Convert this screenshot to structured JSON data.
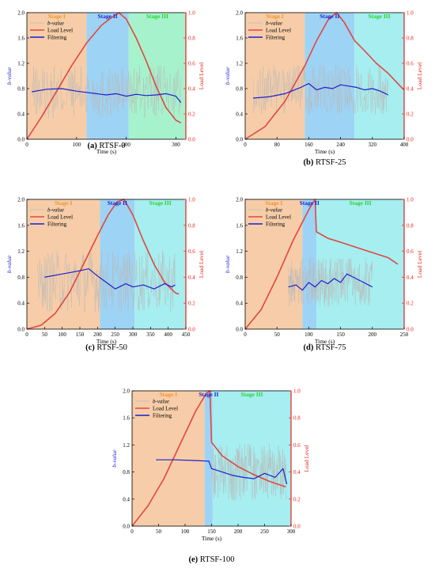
{
  "figure": {
    "panels": [
      {
        "id": "a",
        "letter": "(a)",
        "caption": "RTSF-0"
      },
      {
        "id": "b",
        "letter": "(b)",
        "caption": "RTSF-25"
      },
      {
        "id": "c",
        "letter": "(c)",
        "caption": "RTSF-50"
      },
      {
        "id": "d",
        "letter": "(d)",
        "caption": "RTSF-75"
      },
      {
        "id": "e",
        "letter": "(e)",
        "caption": "RTSF-100"
      }
    ]
  },
  "colors": {
    "stage1": "#f6cda8",
    "stage2": "#9dd3f5",
    "stage3a": "#a6f2cc",
    "stage3b": "#a6eef0",
    "stage1_label": "#f0962e",
    "stage2_label": "#1b1fd0",
    "stage3_label": "#29d42a",
    "load": "#e04840",
    "filter": "#1b1fd0",
    "raw": "#b8b8b8",
    "right_axis": "#e8201a"
  },
  "chart_data": [
    {
      "type": "line",
      "panel": "a",
      "xlabel": "Time (s)",
      "ylabel": "b-value",
      "y2label": "Load Level",
      "xlim": [
        0,
        320
      ],
      "ylim": [
        0,
        2.0
      ],
      "y2lim": [
        0,
        1.0
      ],
      "xticks": [
        0,
        100,
        200,
        300
      ],
      "yticks": [
        0.0,
        0.4,
        0.8,
        1.2,
        1.6,
        2.0
      ],
      "y2ticks": [
        0.0,
        0.2,
        0.4,
        0.6,
        0.8,
        1.0
      ],
      "stages": [
        {
          "label": "Stage I",
          "from": 0,
          "to": 120
        },
        {
          "label": "Stage II",
          "from": 120,
          "to": 205
        },
        {
          "label": "Stage III",
          "from": 205,
          "to": 320
        }
      ],
      "legend": [
        "b-value",
        "Load Level",
        "Filtering"
      ],
      "legend_position": "top-left",
      "load_level": {
        "x": [
          0,
          30,
          60,
          90,
          120,
          150,
          170,
          185,
          200,
          220,
          240,
          260,
          280,
          300,
          310
        ],
        "y": [
          0.0,
          0.18,
          0.38,
          0.58,
          0.76,
          0.9,
          0.96,
          1.0,
          0.95,
          0.8,
          0.62,
          0.42,
          0.25,
          0.15,
          0.13
        ]
      },
      "filtering": {
        "x": [
          10,
          40,
          70,
          100,
          120,
          140,
          160,
          180,
          200,
          220,
          240,
          260,
          280,
          300,
          310
        ],
        "y": [
          0.75,
          0.79,
          0.8,
          0.76,
          0.74,
          0.72,
          0.7,
          0.72,
          0.68,
          0.71,
          0.69,
          0.7,
          0.72,
          0.68,
          0.58
        ]
      },
      "raw": {
        "from": 10,
        "to": 310,
        "mean": 0.74,
        "amp": 0.42
      }
    },
    {
      "type": "line",
      "panel": "b",
      "xlabel": "Time (s)",
      "ylabel": "b-value",
      "y2label": "Load Level",
      "xlim": [
        0,
        400
      ],
      "ylim": [
        0,
        2.0
      ],
      "y2lim": [
        0,
        1.0
      ],
      "xticks": [
        0,
        80,
        160,
        240,
        320,
        400
      ],
      "yticks": [
        0.0,
        0.4,
        0.8,
        1.2,
        1.6,
        2.0
      ],
      "y2ticks": [
        0.0,
        0.2,
        0.4,
        0.6,
        0.8,
        1.0
      ],
      "stages": [
        {
          "label": "Stage I",
          "from": 0,
          "to": 150
        },
        {
          "label": "Stage II",
          "from": 150,
          "to": 275
        },
        {
          "label": "Stage III",
          "from": 275,
          "to": 400
        }
      ],
      "legend": [
        "b-value",
        "Load Level",
        "Filtering"
      ],
      "legend_position": "top-left",
      "load_level": {
        "x": [
          0,
          50,
          100,
          150,
          180,
          210,
          230,
          250,
          275,
          300,
          330,
          360,
          390,
          400
        ],
        "y": [
          0.0,
          0.1,
          0.3,
          0.58,
          0.78,
          0.95,
          1.0,
          0.92,
          0.78,
          0.7,
          0.6,
          0.52,
          0.42,
          0.39
        ]
      },
      "filtering": {
        "x": [
          20,
          60,
          100,
          140,
          160,
          180,
          200,
          220,
          240,
          260,
          280,
          300,
          320,
          340,
          360
        ],
        "y": [
          0.65,
          0.67,
          0.72,
          0.82,
          0.88,
          0.78,
          0.82,
          0.8,
          0.86,
          0.84,
          0.82,
          0.78,
          0.8,
          0.76,
          0.7
        ]
      },
      "raw": {
        "from": 20,
        "to": 360,
        "mean": 0.78,
        "amp": 0.4
      }
    },
    {
      "type": "line",
      "panel": "c",
      "xlabel": "Time (s)",
      "ylabel": "b-value",
      "y2label": "Load Level",
      "xlim": [
        0,
        450
      ],
      "ylim": [
        0,
        2.0
      ],
      "y2lim": [
        0,
        1.0
      ],
      "xticks": [
        0,
        50,
        100,
        150,
        200,
        250,
        300,
        350,
        400,
        450
      ],
      "yticks": [
        0.0,
        0.4,
        0.8,
        1.2,
        1.6,
        2.0
      ],
      "y2ticks": [
        0.0,
        0.2,
        0.4,
        0.6,
        0.8,
        1.0
      ],
      "stages": [
        {
          "label": "Stage I",
          "from": 0,
          "to": 207
        },
        {
          "label": "Stage II",
          "from": 207,
          "to": 305
        },
        {
          "label": "Stage III",
          "from": 305,
          "to": 450
        }
      ],
      "legend": [
        "b-value",
        "Load Level",
        "Filtering"
      ],
      "legend_position": "top-left",
      "load_level": {
        "x": [
          0,
          40,
          80,
          120,
          160,
          200,
          230,
          255,
          275,
          300,
          330,
          360,
          390,
          420,
          430
        ],
        "y": [
          0.0,
          0.03,
          0.12,
          0.28,
          0.5,
          0.72,
          0.88,
          0.98,
          1.0,
          0.88,
          0.68,
          0.5,
          0.36,
          0.28,
          0.27
        ]
      },
      "filtering": {
        "x": [
          50,
          100,
          150,
          175,
          200,
          230,
          250,
          280,
          300,
          330,
          360,
          390,
          410,
          420
        ],
        "y": [
          0.8,
          0.85,
          0.9,
          0.93,
          0.82,
          0.7,
          0.62,
          0.7,
          0.65,
          0.68,
          0.62,
          0.7,
          0.65,
          0.68
        ]
      },
      "raw": {
        "from": 30,
        "to": 420,
        "mean": 0.74,
        "amp": 0.48
      }
    },
    {
      "type": "line",
      "panel": "d",
      "xlabel": "Time (s)",
      "ylabel": "b-value",
      "y2label": "Load Level",
      "xlim": [
        0,
        250
      ],
      "ylim": [
        0,
        2.0
      ],
      "y2lim": [
        0,
        1.0
      ],
      "xticks": [
        0,
        50,
        100,
        150,
        200,
        250
      ],
      "yticks": [
        0.0,
        0.4,
        0.8,
        1.2,
        1.6,
        2.0
      ],
      "y2ticks": [
        0.0,
        0.2,
        0.4,
        0.6,
        0.8,
        1.0
      ],
      "stages": [
        {
          "label": "Stage I",
          "from": 0,
          "to": 90
        },
        {
          "label": "Stage II",
          "from": 90,
          "to": 112
        },
        {
          "label": "Stage III",
          "from": 112,
          "to": 250
        }
      ],
      "legend": [
        "b-value",
        "Load Level",
        "Filtering"
      ],
      "legend_position": "top-left",
      "load_level": {
        "x": [
          0,
          25,
          50,
          75,
          100,
          110,
          112,
          130,
          150,
          175,
          200,
          225,
          240
        ],
        "y": [
          0.0,
          0.15,
          0.4,
          0.68,
          0.92,
          1.0,
          0.75,
          0.7,
          0.67,
          0.63,
          0.59,
          0.55,
          0.5
        ]
      },
      "filtering": {
        "x": [
          68,
          80,
          90,
          100,
          110,
          120,
          130,
          140,
          150,
          160,
          170,
          180,
          190,
          200
        ],
        "y": [
          0.65,
          0.68,
          0.6,
          0.72,
          0.65,
          0.75,
          0.7,
          0.78,
          0.72,
          0.85,
          0.8,
          0.75,
          0.7,
          0.65
        ]
      },
      "raw": {
        "from": 68,
        "to": 200,
        "mean": 0.72,
        "amp": 0.38
      }
    },
    {
      "type": "line",
      "panel": "e",
      "xlabel": "Time (s)",
      "ylabel": "b-value",
      "y2label": "Load Level",
      "xlim": [
        0,
        300
      ],
      "ylim": [
        0,
        2.0
      ],
      "y2lim": [
        0,
        1.0
      ],
      "xticks": [
        0,
        50,
        100,
        150,
        200,
        250,
        300
      ],
      "yticks": [
        0.0,
        0.4,
        0.8,
        1.2,
        1.6,
        2.0
      ],
      "y2ticks": [
        0.0,
        0.2,
        0.4,
        0.6,
        0.8,
        1.0
      ],
      "stages": [
        {
          "label": "Stage I",
          "from": 0,
          "to": 137
        },
        {
          "label": "Stage II",
          "from": 137,
          "to": 152
        },
        {
          "label": "Stage III",
          "from": 152,
          "to": 300
        }
      ],
      "legend": [
        "b-value",
        "Load Level",
        "Filtering"
      ],
      "legend_position": "top-left",
      "load_level": {
        "x": [
          0,
          30,
          60,
          90,
          120,
          140,
          147,
          150,
          170,
          200,
          230,
          260,
          290
        ],
        "y": [
          0.0,
          0.15,
          0.35,
          0.6,
          0.85,
          0.98,
          1.0,
          0.62,
          0.52,
          0.44,
          0.38,
          0.33,
          0.29
        ]
      },
      "filtering": {
        "x": [
          45,
          80,
          120,
          145,
          150,
          170,
          190,
          210,
          230,
          250,
          270,
          285,
          292
        ],
        "y": [
          0.98,
          0.98,
          0.97,
          0.96,
          0.85,
          0.8,
          0.75,
          0.72,
          0.7,
          0.78,
          0.72,
          0.85,
          0.62
        ]
      },
      "raw": {
        "from": 150,
        "to": 292,
        "mean": 0.8,
        "amp": 0.42
      }
    }
  ]
}
